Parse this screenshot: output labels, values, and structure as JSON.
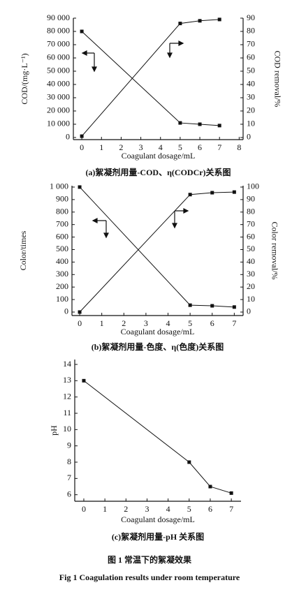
{
  "chart_data": [
    {
      "type": "line",
      "x": [
        0,
        5,
        6,
        7
      ],
      "series": [
        {
          "color": "#111111",
          "values": [
            80000,
            11000,
            10000,
            9000
          ]
        },
        {
          "color": "#111111",
          "axis": "y2",
          "values": [
            1,
            86,
            88,
            89
          ]
        }
      ],
      "xlim": [
        -0.43,
        8.2
      ],
      "xticks": [
        0,
        1,
        2,
        3,
        4,
        5,
        6,
        7,
        8
      ],
      "ylim": [
        -1600,
        90000
      ],
      "yticks": [
        0,
        {
          "value": 10000,
          "label": "10 000"
        },
        {
          "value": 20000,
          "label": "20 000"
        },
        {
          "value": 30000,
          "label": "30 000"
        },
        {
          "value": 40000,
          "label": "40 000"
        },
        {
          "value": 50000,
          "label": "50 000"
        },
        {
          "value": 60000,
          "label": "60 000"
        },
        {
          "value": 70000,
          "label": "70 000"
        },
        {
          "value": 80000,
          "label": "80 000"
        },
        {
          "value": 90000,
          "label": "90 000"
        }
      ],
      "y2lim": [
        -1.6,
        90
      ],
      "y2ticks": [
        0,
        10,
        20,
        30,
        40,
        50,
        60,
        70,
        80,
        90
      ],
      "xlabel": "Coagulant dosage/mL",
      "ylabel": "COD/(mg·L⁻¹)",
      "y2label": "COD removal/%",
      "caption": "(a)絮凝剂用量-COD、η(CODCr)关系图"
    },
    {
      "type": "line",
      "x": [
        0,
        5,
        6,
        7
      ],
      "series": [
        {
          "color": "#111111",
          "values": [
            1000,
            55,
            50,
            40
          ]
        },
        {
          "color": "#111111",
          "axis": "y2",
          "values": [
            0,
            94,
            95.5,
            96
          ]
        }
      ],
      "xlim": [
        -0.35,
        7.4
      ],
      "xticks": [
        0,
        1,
        2,
        3,
        4,
        5,
        6,
        7
      ],
      "ylim": [
        -28,
        1011
      ],
      "yticks": [
        0,
        100,
        200,
        300,
        400,
        500,
        600,
        700,
        800,
        900,
        {
          "value": 1000,
          "label": "1 000"
        }
      ],
      "y2lim": [
        -2.8,
        101.1
      ],
      "y2ticks": [
        0,
        10,
        20,
        30,
        40,
        50,
        60,
        70,
        80,
        90,
        100
      ],
      "xlabel": "Coagulant dosage/mL",
      "ylabel": "Color/times",
      "y2label": "Color removal/%",
      "caption": "(b)絮凝剂用量-色度、η(色度)关系图"
    },
    {
      "type": "line",
      "x": [
        0,
        5,
        6,
        7
      ],
      "series": [
        {
          "color": "#111111",
          "values": [
            13,
            8,
            6.5,
            6.1
          ]
        }
      ],
      "xlim": [
        -0.43,
        7.46
      ],
      "xticks": [
        0,
        1,
        2,
        3,
        4,
        5,
        6,
        7
      ],
      "ylim": [
        5.6,
        14.3
      ],
      "yticks": [
        6,
        7,
        8,
        9,
        10,
        11,
        12,
        13,
        14
      ],
      "xlabel": "Coagulant dosage/mL",
      "ylabel": "pH",
      "caption": "(c)絮凝剂用量-pH 关系图"
    }
  ],
  "figure_caption_cn": "图 1   常温下的絮凝效果",
  "figure_caption_en": "Fig 1   Coagulation results under room temperature"
}
